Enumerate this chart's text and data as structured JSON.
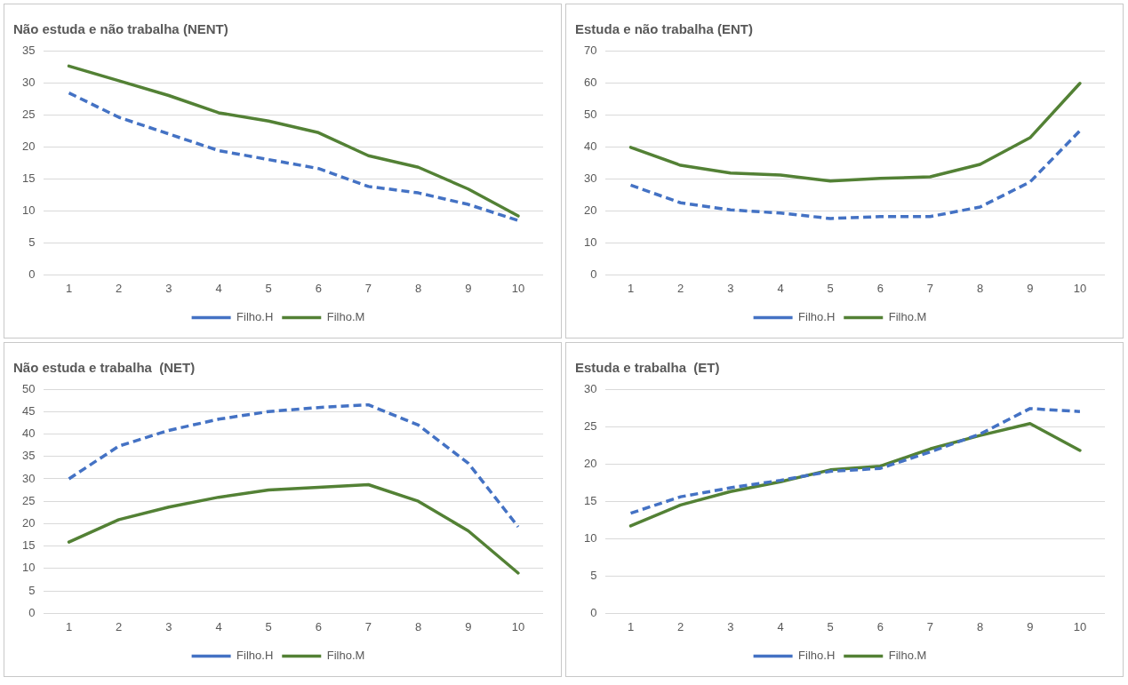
{
  "chart_data": [
    {
      "type": "line",
      "title": "Não estuda e não trabalha (NENT)",
      "categories": [
        "1",
        "2",
        "3",
        "4",
        "5",
        "6",
        "7",
        "8",
        "9",
        "10"
      ],
      "ylim": [
        0,
        35
      ],
      "yticks": [
        0,
        5,
        10,
        15,
        20,
        25,
        30,
        35
      ],
      "grid": "y",
      "legend": "bottom",
      "marker": "none",
      "series": [
        {
          "name": "Filho.H",
          "color": "#4472c4",
          "line_style": "dashed",
          "values": [
            28.4,
            24.6,
            22,
            19.4,
            18,
            16.6,
            13.8,
            12.8,
            11,
            8.5
          ]
        },
        {
          "name": "Filho.M",
          "color": "#538135",
          "line_style": "solid",
          "values": [
            32.6,
            30.3,
            28,
            25.3,
            24,
            22.2,
            18.6,
            16.8,
            13.4,
            9.2
          ]
        }
      ]
    },
    {
      "type": "line",
      "title": "Estuda e não trabalha (ENT)",
      "categories": [
        "1",
        "2",
        "3",
        "4",
        "5",
        "6",
        "7",
        "8",
        "9",
        "10"
      ],
      "ylim": [
        0,
        70
      ],
      "yticks": [
        0,
        10,
        20,
        30,
        40,
        50,
        60,
        70
      ],
      "grid": "y",
      "legend": "bottom",
      "marker": "none",
      "series": [
        {
          "name": "Filho.H",
          "color": "#4472c4",
          "line_style": "dashed",
          "values": [
            28,
            22.5,
            20.3,
            19.3,
            17.6,
            18.2,
            18.2,
            21.2,
            29,
            45
          ]
        },
        {
          "name": "Filho.M",
          "color": "#538135",
          "line_style": "solid",
          "values": [
            39.8,
            34.2,
            31.8,
            31.2,
            29.3,
            30.1,
            30.6,
            34.5,
            42.8,
            59.8
          ]
        }
      ]
    },
    {
      "type": "line",
      "title": "Não estuda e trabalha  (NET)",
      "categories": [
        "1",
        "2",
        "3",
        "4",
        "5",
        "6",
        "7",
        "8",
        "9",
        "10"
      ],
      "ylim": [
        0,
        50
      ],
      "yticks": [
        0,
        5,
        10,
        15,
        20,
        25,
        30,
        35,
        40,
        45,
        50
      ],
      "grid": "y",
      "legend": "bottom",
      "marker": "none",
      "series": [
        {
          "name": "Filho.H",
          "color": "#4472c4",
          "line_style": "dashed",
          "values": [
            30,
            37.3,
            40.8,
            43.3,
            45,
            45.9,
            46.5,
            42,
            33.5,
            19.3
          ]
        },
        {
          "name": "Filho.M",
          "color": "#538135",
          "line_style": "solid",
          "values": [
            15.9,
            20.9,
            23.7,
            25.9,
            27.5,
            28.1,
            28.7,
            25,
            18.4,
            9
          ]
        }
      ]
    },
    {
      "type": "line",
      "title": "Estuda e trabalha  (ET)",
      "categories": [
        "1",
        "2",
        "3",
        "4",
        "5",
        "6",
        "7",
        "8",
        "9",
        "10"
      ],
      "ylim": [
        0,
        30
      ],
      "yticks": [
        0,
        5,
        10,
        15,
        20,
        25,
        30
      ],
      "grid": "y",
      "legend": "bottom",
      "marker": "none",
      "series": [
        {
          "name": "Filho.H",
          "color": "#4472c4",
          "line_style": "dashed",
          "values": [
            13.4,
            15.6,
            16.8,
            17.8,
            19,
            19.4,
            21.6,
            24,
            27.4,
            27
          ]
        },
        {
          "name": "Filho.M",
          "color": "#538135",
          "line_style": "solid",
          "values": [
            11.7,
            14.5,
            16.3,
            17.6,
            19.2,
            19.7,
            22,
            23.8,
            25.4,
            21.8
          ]
        }
      ]
    }
  ]
}
